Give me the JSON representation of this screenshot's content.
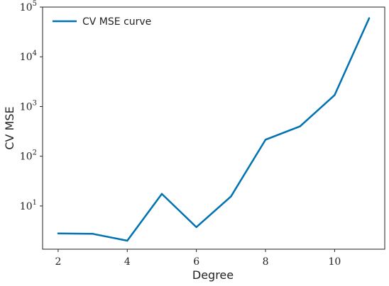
{
  "chart_data": {
    "type": "line",
    "title": "",
    "xlabel": "Degree",
    "ylabel": "CV MSE",
    "x": [
      2,
      3,
      4,
      5,
      6,
      7,
      8,
      9,
      10,
      11
    ],
    "series": [
      {
        "name": "CV MSE curve",
        "values": [
          2.8,
          2.75,
          2.0,
          17.5,
          3.75,
          15.5,
          215,
          400,
          1700,
          60000
        ],
        "color": "#0072b2"
      }
    ],
    "xlim": [
      1.55,
      11.45
    ],
    "ylim": [
      1.35,
      100000
    ],
    "yscale": "log",
    "xticks": [
      2,
      4,
      6,
      8,
      10
    ],
    "yticks": [
      {
        "value": 10,
        "base": "10",
        "exp": "1"
      },
      {
        "value": 100,
        "base": "10",
        "exp": "2"
      },
      {
        "value": 1000,
        "base": "10",
        "exp": "3"
      },
      {
        "value": 10000,
        "base": "10",
        "exp": "4"
      },
      {
        "value": 100000,
        "base": "10",
        "exp": "5"
      }
    ],
    "grid": false,
    "legend": "upper-left"
  }
}
